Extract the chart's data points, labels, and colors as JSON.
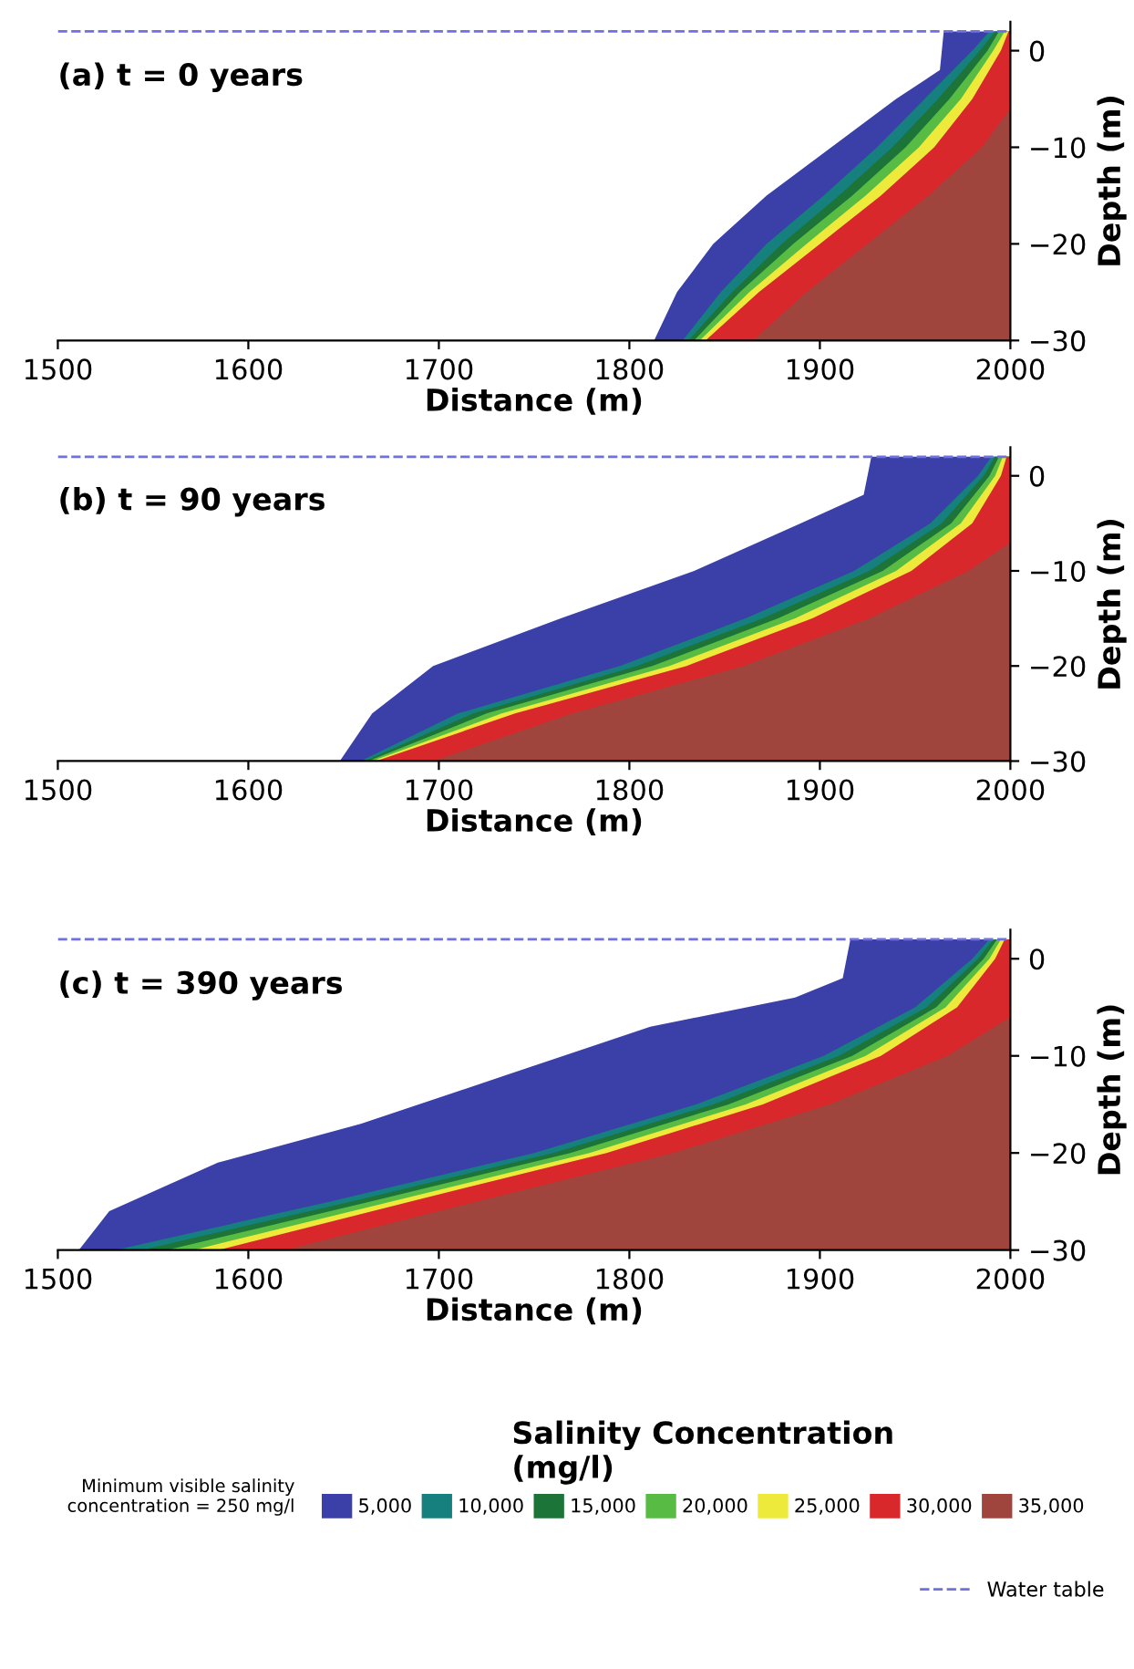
{
  "chart_data": [
    {
      "type": "area",
      "title": "(a) t = 0 years",
      "xlabel": "Distance (m)",
      "ylabel": "Depth (m)",
      "xlim": [
        1500,
        2000
      ],
      "xticks": [
        1500,
        1600,
        1700,
        1800,
        1900,
        2000
      ],
      "ylim": [
        -30,
        3
      ],
      "yticks": [
        0,
        -10,
        -20,
        -30
      ],
      "ref_lines": [
        {
          "axis": "y",
          "value": 2,
          "color": "#7070e0",
          "line_style": "dashed"
        }
      ],
      "series": [
        {
          "color": "#3b40a8",
          "x": [
            1813,
            1825,
            1844,
            1872,
            1906,
            1940,
            1963,
            1965,
            2000,
            2000
          ],
          "values": [
            -30,
            -25,
            -20,
            -15,
            -10,
            -5,
            -2,
            2,
            2,
            -30
          ]
        },
        {
          "color": "#16807e",
          "x": [
            1828,
            1848,
            1872,
            1902,
            1930,
            1955,
            1980,
            1989,
            2000,
            2000
          ],
          "values": [
            -30,
            -25,
            -20,
            -15,
            -10,
            -5,
            0,
            2,
            2,
            -30
          ]
        },
        {
          "color": "#1c7438",
          "x": [
            1831,
            1854,
            1880,
            1910,
            1938,
            1962,
            1984,
            1992,
            2000,
            2000
          ],
          "values": [
            -30,
            -25,
            -20,
            -15,
            -10,
            -5,
            0,
            2,
            2,
            -30
          ]
        },
        {
          "color": "#58bb44",
          "x": [
            1834,
            1858,
            1886,
            1917,
            1945,
            1968,
            1988,
            1994,
            2000,
            2000
          ],
          "values": [
            -30,
            -25,
            -20,
            -15,
            -10,
            -5,
            0,
            2,
            2,
            -30
          ]
        },
        {
          "color": "#eeea3c",
          "x": [
            1837,
            1863,
            1893,
            1924,
            1952,
            1974,
            1991,
            1997,
            2000,
            2000
          ],
          "values": [
            -30,
            -25,
            -20,
            -15,
            -10,
            -5,
            0,
            2,
            2,
            -30
          ]
        },
        {
          "color": "#d8282c",
          "x": [
            1840,
            1868,
            1900,
            1932,
            1960,
            1980,
            1995,
            1999,
            2000,
            2000
          ],
          "values": [
            -30,
            -25,
            -20,
            -15,
            -10,
            -5,
            0,
            2,
            2,
            -30
          ]
        },
        {
          "color": "#a0453e",
          "x": [
            1865,
            1893,
            1925,
            1957,
            1985,
            2000,
            2000
          ],
          "values": [
            -30,
            -25,
            -20,
            -15,
            -10,
            -6,
            -30
          ]
        }
      ]
    },
    {
      "type": "area",
      "title": "(b) t = 90 years",
      "xlabel": "Distance (m)",
      "ylabel": "Depth (m)",
      "xlim": [
        1500,
        2000
      ],
      "xticks": [
        1500,
        1600,
        1700,
        1800,
        1900,
        2000
      ],
      "ylim": [
        -30,
        3
      ],
      "yticks": [
        0,
        -10,
        -20,
        -30
      ],
      "ref_lines": [
        {
          "axis": "y",
          "value": 2,
          "color": "#7070e0",
          "line_style": "dashed"
        }
      ],
      "series": [
        {
          "color": "#3b40a8",
          "x": [
            1648,
            1665,
            1697,
            1764,
            1834,
            1890,
            1923,
            1927,
            2000,
            2000
          ],
          "values": [
            -30,
            -25,
            -20,
            -15,
            -10,
            -5,
            -2,
            2,
            2,
            -30
          ]
        },
        {
          "color": "#16807e",
          "x": [
            1659,
            1710,
            1795,
            1861,
            1918,
            1958,
            1983,
            1990,
            2000,
            2000
          ],
          "values": [
            -30,
            -25,
            -20,
            -15,
            -10,
            -5,
            0,
            2,
            2,
            -30
          ]
        },
        {
          "color": "#1c7438",
          "x": [
            1661,
            1718,
            1804,
            1870,
            1926,
            1964,
            1986,
            1992,
            2000,
            2000
          ],
          "values": [
            -30,
            -25,
            -20,
            -15,
            -10,
            -5,
            0,
            2,
            2,
            -30
          ]
        },
        {
          "color": "#58bb44",
          "x": [
            1663,
            1725,
            1812,
            1878,
            1933,
            1969,
            1989,
            1994,
            2000,
            2000
          ],
          "values": [
            -30,
            -25,
            -20,
            -15,
            -10,
            -5,
            0,
            2,
            2,
            -30
          ]
        },
        {
          "color": "#eeea3c",
          "x": [
            1665,
            1733,
            1821,
            1887,
            1940,
            1974,
            1992,
            1996,
            2000,
            2000
          ],
          "values": [
            -30,
            -25,
            -20,
            -15,
            -10,
            -5,
            0,
            2,
            2,
            -30
          ]
        },
        {
          "color": "#d8282c",
          "x": [
            1667,
            1740,
            1830,
            1896,
            1948,
            1980,
            1995,
            1998,
            2000,
            2000
          ],
          "values": [
            -30,
            -25,
            -20,
            -15,
            -10,
            -5,
            0,
            2,
            2,
            -30
          ]
        },
        {
          "color": "#a0453e",
          "x": [
            1697,
            1770,
            1860,
            1926,
            1978,
            2000,
            2000
          ],
          "values": [
            -30,
            -25,
            -20,
            -15,
            -10,
            -7,
            -30
          ]
        }
      ]
    },
    {
      "type": "area",
      "title": "(c) t = 390 years",
      "xlabel": "Distance (m)",
      "ylabel": "Depth (m)",
      "xlim": [
        1500,
        2000
      ],
      "xticks": [
        1500,
        1600,
        1700,
        1800,
        1900,
        2000
      ],
      "ylim": [
        -30,
        3
      ],
      "yticks": [
        0,
        -10,
        -20,
        -30
      ],
      "legend_title": "Salinity Concentration\n(mg/l)",
      "legend": "bottom",
      "annotations": [
        "Minimum visible salinity\nconcentration = 250 mg/l"
      ],
      "ref_lines": [
        {
          "axis": "y",
          "value": 2,
          "label": "Water table",
          "color": "#7070e0",
          "line_style": "dashed"
        }
      ],
      "series": [
        {
          "name": "5,000",
          "color": "#3b40a8",
          "x": [
            1511,
            1527,
            1584,
            1659,
            1735,
            1811,
            1887,
            1912,
            1916,
            2000,
            2000
          ],
          "values": [
            -30,
            -26,
            -21,
            -17,
            -12,
            -7,
            -4,
            -2,
            2,
            2,
            -30
          ]
        },
        {
          "name": "10,000",
          "color": "#16807e",
          "x": [
            1530,
            1643,
            1750,
            1835,
            1902,
            1950,
            1980,
            1989,
            2000,
            2000
          ],
          "values": [
            -30,
            -25,
            -20,
            -15,
            -10,
            -5,
            0,
            2,
            2,
            -30
          ]
        },
        {
          "name": "15,000",
          "color": "#1c7438",
          "x": [
            1544,
            1654,
            1760,
            1844,
            1910,
            1956,
            1983,
            1991,
            2000,
            2000
          ],
          "values": [
            -30,
            -25,
            -20,
            -15,
            -10,
            -5,
            0,
            2,
            2,
            -30
          ]
        },
        {
          "name": "20,000",
          "color": "#58bb44",
          "x": [
            1557,
            1664,
            1769,
            1852,
            1917,
            1961,
            1986,
            1993,
            2000,
            2000
          ],
          "values": [
            -30,
            -25,
            -20,
            -15,
            -10,
            -5,
            0,
            2,
            2,
            -30
          ]
        },
        {
          "name": "25,000",
          "color": "#eeea3c",
          "x": [
            1571,
            1675,
            1779,
            1861,
            1924,
            1966,
            1989,
            1995,
            2000,
            2000
          ],
          "values": [
            -30,
            -25,
            -20,
            -15,
            -10,
            -5,
            0,
            2,
            2,
            -30
          ]
        },
        {
          "name": "30,000",
          "color": "#d8282c",
          "x": [
            1584,
            1685,
            1788,
            1870,
            1932,
            1972,
            1992,
            1997,
            2000,
            2000
          ],
          "values": [
            -30,
            -25,
            -20,
            -15,
            -10,
            -5,
            0,
            2,
            2,
            -30
          ]
        },
        {
          "name": "35,000",
          "color": "#a0453e",
          "x": [
            1619,
            1720,
            1823,
            1905,
            1967,
            2000,
            2000
          ],
          "values": [
            -30,
            -25,
            -20,
            -15,
            -10,
            -6,
            -30
          ]
        }
      ]
    }
  ]
}
